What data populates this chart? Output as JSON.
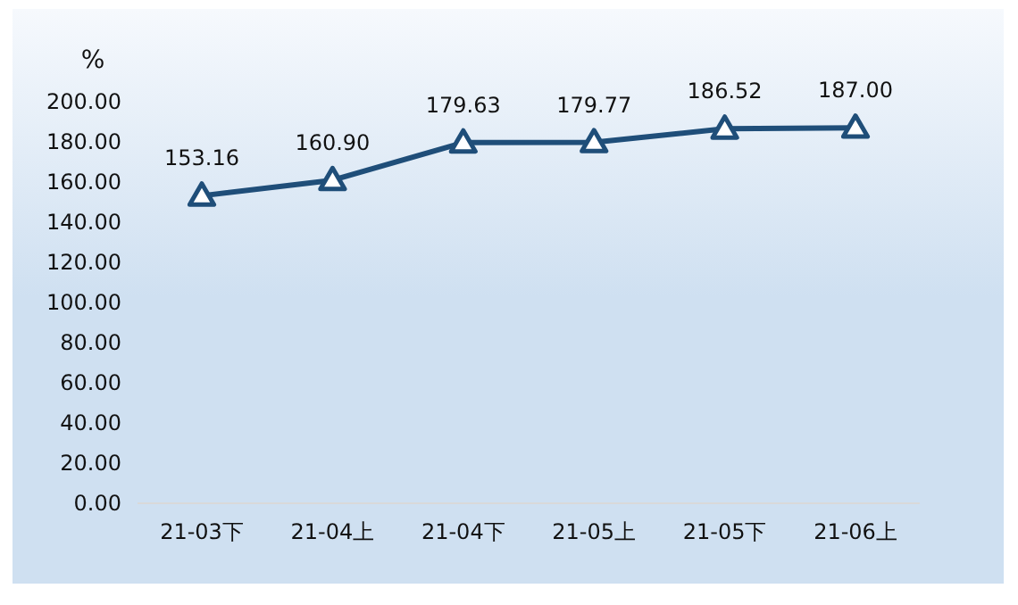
{
  "chart_data": {
    "type": "line",
    "ylabel": "%",
    "categories": [
      "21-03下",
      "21-04上",
      "21-04下",
      "21-05上",
      "21-05下",
      "21-06上"
    ],
    "series": [
      {
        "color": "#1f4e79",
        "values": [
          153.16,
          160.9,
          179.63,
          179.77,
          186.52,
          187.0
        ],
        "value_labels": [
          "153.16",
          "160.90",
          "179.63",
          "179.77",
          "186.52",
          "187.00"
        ]
      }
    ],
    "ylim": [
      0,
      200
    ],
    "yticks": [
      {
        "value": 0,
        "label": "0.00"
      },
      {
        "value": 20,
        "label": "20.00"
      },
      {
        "value": 40,
        "label": "40.00"
      },
      {
        "value": 60,
        "label": "60.00"
      },
      {
        "value": 80,
        "label": "80.00"
      },
      {
        "value": 100,
        "label": "100.00"
      },
      {
        "value": 120,
        "label": "120.00"
      },
      {
        "value": 140,
        "label": "140.00"
      },
      {
        "value": 160,
        "label": "160.00"
      },
      {
        "value": 180,
        "label": "180.00"
      },
      {
        "value": 200,
        "label": "200.00"
      }
    ],
    "marker": "triangle",
    "line_style": "solid"
  }
}
